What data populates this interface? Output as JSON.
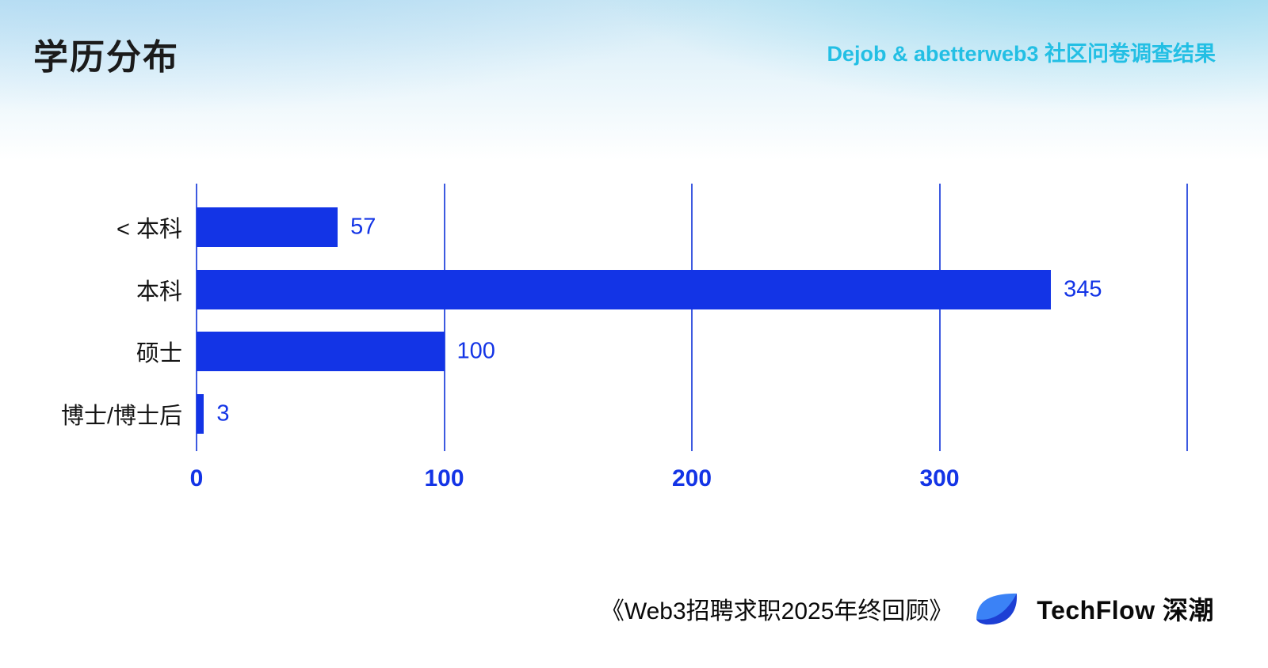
{
  "page": {
    "title": "学历分布",
    "subtitle": "Dejob & abetterweb3 社区问卷调查结果",
    "footer": {
      "source_text": "《Web3招聘求职2025年终回顾》",
      "brand": "TechFlow 深潮"
    }
  },
  "chart_data": {
    "type": "bar",
    "orientation": "horizontal",
    "title": "学历分布",
    "categories": [
      "< 本科",
      "本科",
      "硕士",
      "博士/博士后"
    ],
    "values": [
      57,
      345,
      100,
      3
    ],
    "xlim": [
      0,
      400
    ],
    "xticks": [
      0,
      100,
      200,
      300
    ],
    "gridline_values": [
      0,
      100,
      200,
      300,
      400
    ],
    "grid": true,
    "legend": false,
    "xlabel": "",
    "ylabel": ""
  },
  "colors": {
    "bar": "#1334e6",
    "value_label": "#1334e6",
    "gridline": "#3d5ae0",
    "accent_cyan": "#23bfe4",
    "text_dark": "#1b1b1b",
    "logo_light": "#3b82f6",
    "logo_dark": "#1d3fd4"
  }
}
